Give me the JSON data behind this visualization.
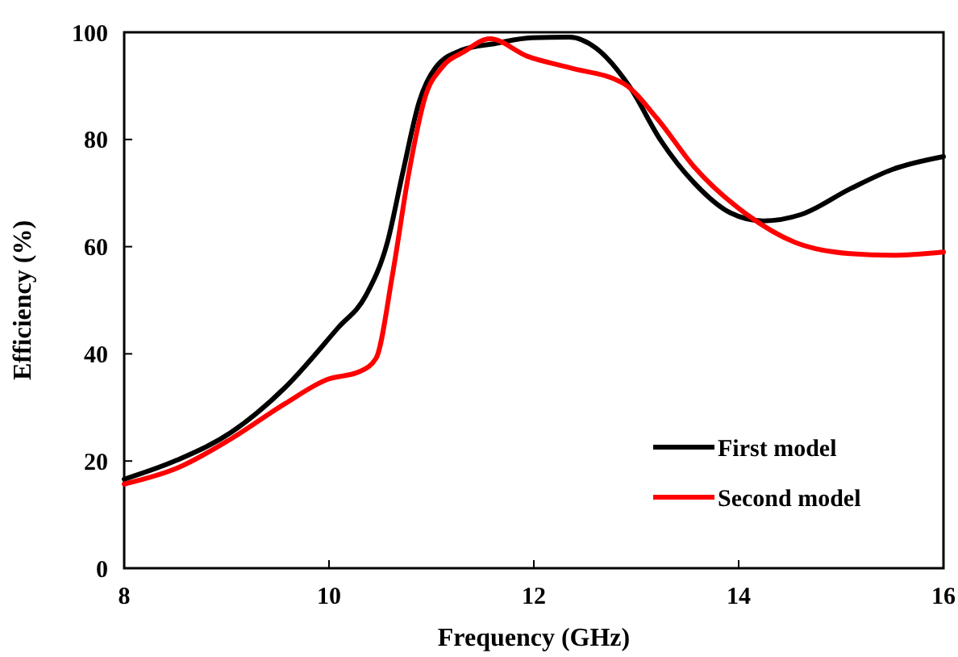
{
  "chart_data": {
    "type": "line",
    "xlabel": "Frequency (GHz)",
    "ylabel": "Efficiency (%)",
    "xlim": [
      8,
      16
    ],
    "ylim": [
      0,
      100
    ],
    "xticks": [
      8,
      10,
      12,
      14,
      16
    ],
    "yticks": [
      0,
      20,
      40,
      60,
      80,
      100
    ],
    "grid": false,
    "legend": "bottom right",
    "marker": "none",
    "line_style": "solid",
    "series": [
      {
        "name": "First model",
        "color": "#000000",
        "x": [
          8,
          8.52,
          9.04,
          9.57,
          10.09,
          10.36,
          10.57,
          10.72,
          10.88,
          11.04,
          11.3,
          11.62,
          11.98,
          12.35,
          12.61,
          12.93,
          13.24,
          13.56,
          13.92,
          14.24,
          14.61,
          15.09,
          15.5,
          16
        ],
        "values": [
          16.6,
          20.2,
          25.3,
          33.7,
          44.9,
          50.9,
          60.8,
          73.8,
          87,
          93.4,
          96.7,
          97.9,
          99,
          99.1,
          97,
          90,
          79.8,
          72,
          66.3,
          64.8,
          66,
          70.8,
          74.4,
          76.8
        ]
      },
      {
        "name": "Second model",
        "color": "#ff0000",
        "x": [
          8,
          8.52,
          9.04,
          9.57,
          9.98,
          10.3,
          10.46,
          10.62,
          10.78,
          10.94,
          11.1,
          11.32,
          11.57,
          11.94,
          12.35,
          12.88,
          13.2,
          13.56,
          14.08,
          14.55,
          15.09,
          15.5,
          16
        ],
        "values": [
          15.7,
          18.7,
          24.1,
          30.7,
          35.2,
          36.7,
          39.2,
          54.8,
          73.8,
          88,
          93.4,
          96.4,
          98.8,
          95.5,
          93.4,
          90.4,
          84,
          75,
          66,
          60.8,
          58.7,
          58.4,
          59
        ]
      }
    ]
  }
}
